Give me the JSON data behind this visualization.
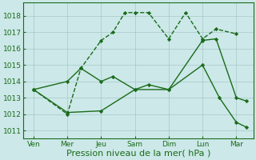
{
  "x_labels": [
    "Ven",
    "Mer",
    "Jeu",
    "Sam",
    "Dim",
    "Lun",
    "Mar"
  ],
  "bg_color": "#cce8e8",
  "grid_color": "#b0c8c8",
  "line_color": "#1a6b1a",
  "ylim": [
    1010.5,
    1018.8
  ],
  "yticks": [
    1011,
    1012,
    1013,
    1014,
    1015,
    1016,
    1017,
    1018
  ],
  "xlabel": "Pression niveau de la mer( hPa )",
  "xlabel_fontsize": 8,
  "line1_x": [
    0,
    1,
    1.4,
    2,
    2.35,
    2.7,
    3,
    3.4,
    4,
    4.5,
    5,
    5.4,
    6
  ],
  "line1_y": [
    1013.5,
    1012.0,
    1014.8,
    1016.5,
    1017.0,
    1018.2,
    1018.2,
    1018.2,
    1016.6,
    1018.2,
    1016.6,
    1017.2,
    1016.9
  ],
  "line2_x": [
    0,
    1,
    1.4,
    2,
    2.35,
    3,
    3.4,
    4,
    5,
    5.4,
    6,
    6.3
  ],
  "line2_y": [
    1013.5,
    1014.0,
    1014.8,
    1014.0,
    1014.3,
    1013.5,
    1013.8,
    1013.5,
    1016.5,
    1016.6,
    1013.0,
    1012.8
  ],
  "line3_x": [
    0,
    1,
    2,
    3,
    4,
    5,
    5.5,
    6,
    6.3
  ],
  "line3_y": [
    1013.5,
    1012.1,
    1012.2,
    1013.5,
    1013.5,
    1015.0,
    1013.0,
    1011.5,
    1011.2
  ],
  "xlim": [
    -0.3,
    6.5
  ]
}
